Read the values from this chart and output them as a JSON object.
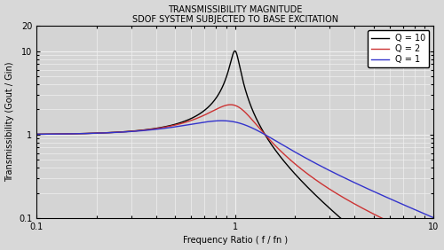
{
  "title_line1": "TRANSMISSIBILITY MAGNITUDE",
  "title_line2": "SDOF SYSTEM SUBJECTED TO BASE EXCITATION",
  "xlabel": "Frequency Ratio ( f / fn )",
  "ylabel": "Transmissibility (Gout / Gin)",
  "xlim": [
    0.1,
    10
  ],
  "ylim": [
    0.1,
    20
  ],
  "Q_values": [
    10,
    2,
    1
  ],
  "colors": [
    "black",
    "#cc3333",
    "#3333cc"
  ],
  "legend_labels": [
    "Q = 10",
    "Q = 2",
    "Q = 1"
  ],
  "background_color": "#d8d8d8",
  "plot_bg_color": "#d4d4d4",
  "grid_color": "#f0f0f0",
  "title_fontsize": 7,
  "label_fontsize": 7,
  "tick_fontsize": 7,
  "legend_fontsize": 7,
  "linewidth": 1.0
}
